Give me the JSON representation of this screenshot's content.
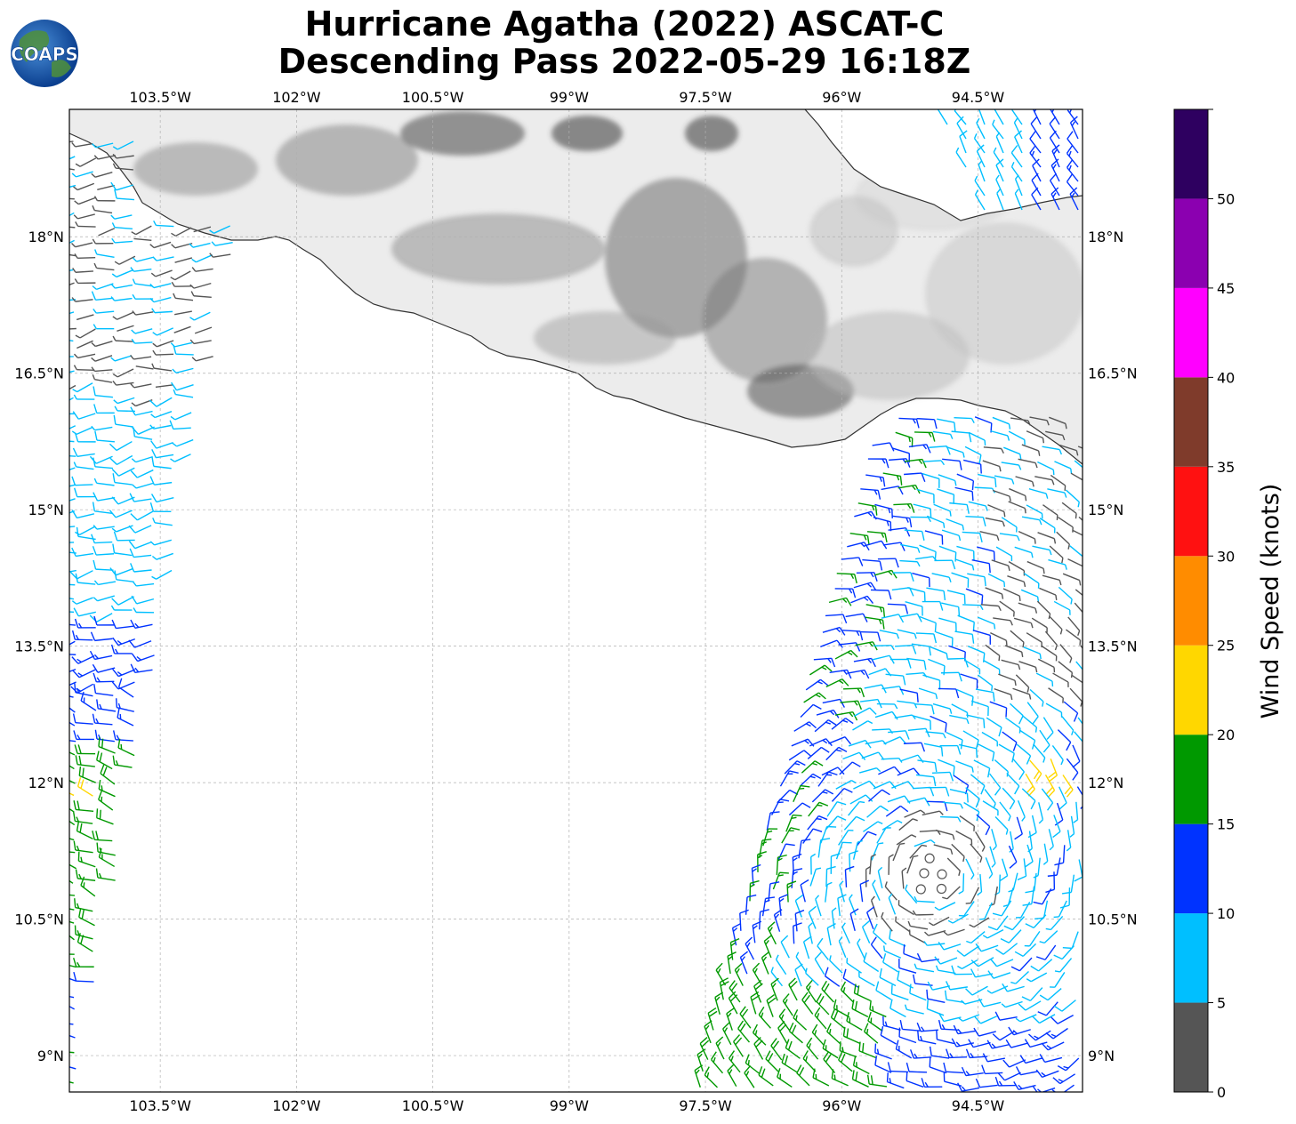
{
  "title": {
    "line1": "Hurricane Agatha (2022) ASCAT-C",
    "line2": "Descending Pass 2022-05-29 16:18Z"
  },
  "logo": {
    "text": "COAPS"
  },
  "map": {
    "lon_range": [
      -104.5,
      -93.35
    ],
    "lat_range": [
      8.6,
      19.4
    ],
    "lon_ticks": [
      -103.5,
      -102,
      -100.5,
      -99,
      -97.5,
      -96,
      -94.5
    ],
    "lat_ticks": [
      9,
      10.5,
      12,
      13.5,
      15,
      16.5,
      18
    ],
    "lon_tick_labels": [
      "103.5°W",
      "102°W",
      "100.5°W",
      "99°W",
      "97.5°W",
      "96°W",
      "94.5°W"
    ],
    "lat_tick_labels": [
      "9°N",
      "10.5°N",
      "12°N",
      "13.5°N",
      "15°N",
      "16.5°N",
      "18°N"
    ],
    "gridlines": true,
    "basemap": "grayscale terrain with coastline",
    "swaths": [
      "western swath (104.5W-102.4W)",
      "eastern swath (97.5W-93.35W)"
    ]
  },
  "colorbar": {
    "label": "Wind Speed (knots)",
    "ticks": [
      0,
      5,
      10,
      15,
      20,
      25,
      30,
      35,
      40,
      45,
      50
    ],
    "range": [
      0,
      55
    ],
    "colors": [
      "#555555",
      "#00bfff",
      "#0033ff",
      "#009900",
      "#ffd700",
      "#ff8c00",
      "#ff1111",
      "#7f3b2b",
      "#ff00ff",
      "#8b00b0",
      "#2e0060"
    ]
  },
  "colors": {
    "coast": "#333333",
    "grid": "#b0b0b0",
    "barb_calm": "#555555"
  }
}
